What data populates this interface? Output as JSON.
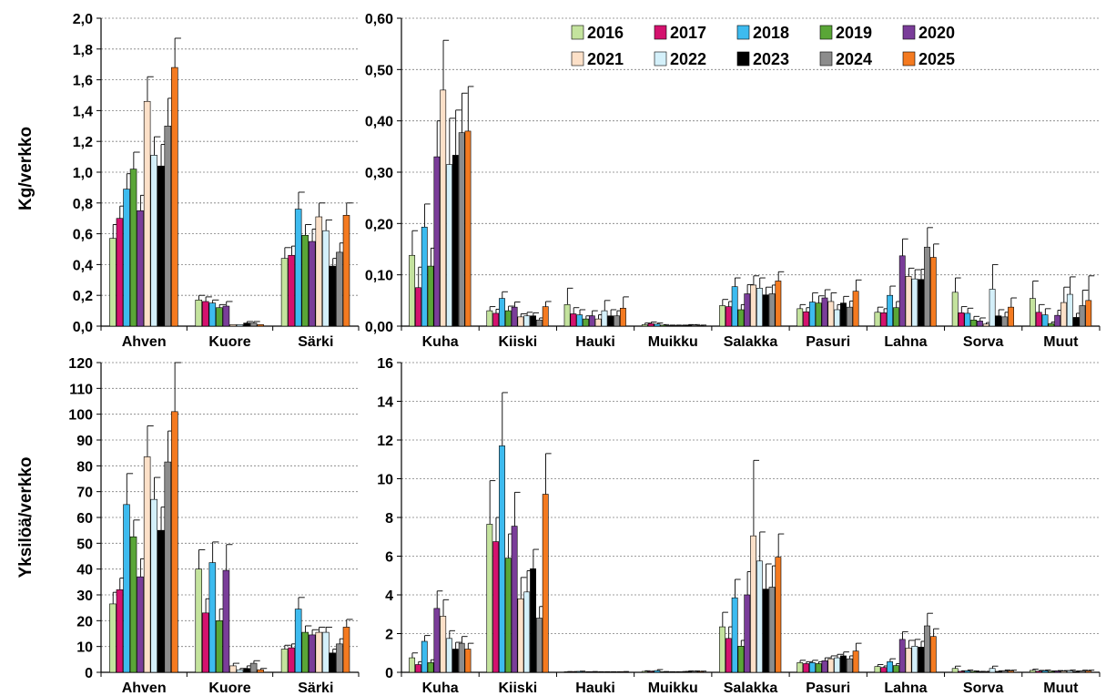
{
  "years": [
    "2016",
    "2017",
    "2018",
    "2019",
    "2020",
    "2021",
    "2022",
    "2023",
    "2024",
    "2025"
  ],
  "colors": [
    "#c4e39e",
    "#d4126e",
    "#3dbbef",
    "#5aa637",
    "#7a3d99",
    "#fce0c8",
    "#d4f0fa",
    "#000000",
    "#8c8c8c",
    "#f47a20"
  ],
  "chart_data": [
    {
      "id": "kg_main",
      "type": "bar",
      "ylabel": "Kg/verkko",
      "ylim": [
        0,
        2.0
      ],
      "ystep": 0.2,
      "decimals": 1,
      "categories": [
        "Ahven",
        "Kuore",
        "Särki"
      ],
      "series": [
        {
          "name": "2016",
          "values": [
            0.57,
            0.17,
            0.44
          ],
          "errors": [
            0.09,
            0.03,
            0.07
          ]
        },
        {
          "name": "2017",
          "values": [
            0.7,
            0.16,
            0.46
          ],
          "errors": [
            0.08,
            0.03,
            0.06
          ]
        },
        {
          "name": "2018",
          "values": [
            0.89,
            0.15,
            0.76
          ],
          "errors": [
            0.1,
            0.02,
            0.11
          ]
        },
        {
          "name": "2019",
          "values": [
            1.02,
            0.12,
            0.59
          ],
          "errors": [
            0.11,
            0.02,
            0.07
          ]
        },
        {
          "name": "2020",
          "values": [
            0.75,
            0.13,
            0.55
          ],
          "errors": [
            0.1,
            0.03,
            0.08
          ]
        },
        {
          "name": "2021",
          "values": [
            1.46,
            0.01,
            0.71
          ],
          "errors": [
            0.16,
            0.0,
            0.09
          ]
        },
        {
          "name": "2022",
          "values": [
            1.11,
            0.01,
            0.62
          ],
          "errors": [
            0.12,
            0.0,
            0.07
          ]
        },
        {
          "name": "2023",
          "values": [
            1.04,
            0.02,
            0.39
          ],
          "errors": [
            0.14,
            0.01,
            0.05
          ]
        },
        {
          "name": "2024",
          "values": [
            1.3,
            0.02,
            0.48
          ],
          "errors": [
            0.18,
            0.01,
            0.06
          ]
        },
        {
          "name": "2025",
          "values": [
            1.68,
            0.01,
            0.72
          ],
          "errors": [
            0.19,
            0.0,
            0.08
          ]
        }
      ]
    },
    {
      "id": "kg_other",
      "type": "bar",
      "ylim": [
        0,
        0.6
      ],
      "ystep": 0.1,
      "decimals": 2,
      "categories": [
        "Kuha",
        "Kiiski",
        "Hauki",
        "Muikku",
        "Salakka",
        "Pasuri",
        "Lahna",
        "Sorva",
        "Muut"
      ],
      "series": [
        {
          "name": "2016",
          "values": [
            0.138,
            0.03,
            0.042,
            0.003,
            0.04,
            0.034,
            0.027,
            0.066,
            0.054
          ],
          "errors": [
            0.048,
            0.008,
            0.032,
            0.003,
            0.012,
            0.008,
            0.01,
            0.028,
            0.034
          ]
        },
        {
          "name": "2017",
          "values": [
            0.075,
            0.025,
            0.024,
            0.005,
            0.038,
            0.028,
            0.026,
            0.026,
            0.027
          ],
          "errors": [
            0.04,
            0.008,
            0.012,
            0.003,
            0.01,
            0.008,
            0.008,
            0.012,
            0.015
          ]
        },
        {
          "name": "2018",
          "values": [
            0.193,
            0.054,
            0.022,
            0.004,
            0.077,
            0.047,
            0.06,
            0.025,
            0.022
          ],
          "errors": [
            0.045,
            0.013,
            0.01,
            0.002,
            0.017,
            0.018,
            0.018,
            0.01,
            0.012
          ]
        },
        {
          "name": "2019",
          "values": [
            0.117,
            0.03,
            0.014,
            0.002,
            0.032,
            0.045,
            0.036,
            0.012,
            0.005
          ],
          "errors": [
            0.035,
            0.009,
            0.006,
            0.001,
            0.01,
            0.014,
            0.012,
            0.007,
            0.003
          ]
        },
        {
          "name": "2020",
          "values": [
            0.33,
            0.037,
            0.02,
            0.001,
            0.063,
            0.055,
            0.137,
            0.01,
            0.021
          ],
          "errors": [
            0.07,
            0.01,
            0.01,
            0.001,
            0.018,
            0.016,
            0.033,
            0.006,
            0.01
          ]
        },
        {
          "name": "2021",
          "values": [
            0.46,
            0.018,
            0.014,
            0.001,
            0.08,
            0.048,
            0.097,
            0.004,
            0.046
          ],
          "errors": [
            0.097,
            0.006,
            0.008,
            0.001,
            0.018,
            0.017,
            0.016,
            0.003,
            0.03
          ]
        },
        {
          "name": "2022",
          "values": [
            0.315,
            0.02,
            0.03,
            0.001,
            0.074,
            0.032,
            0.092,
            0.072,
            0.062
          ],
          "errors": [
            0.09,
            0.007,
            0.02,
            0.001,
            0.02,
            0.01,
            0.018,
            0.048,
            0.034
          ]
        },
        {
          "name": "2023",
          "values": [
            0.333,
            0.02,
            0.02,
            0.002,
            0.061,
            0.045,
            0.091,
            0.02,
            0.017
          ],
          "errors": [
            0.088,
            0.006,
            0.012,
            0.001,
            0.015,
            0.013,
            0.02,
            0.012,
            0.008
          ]
        },
        {
          "name": "2024",
          "values": [
            0.377,
            0.012,
            0.02,
            0.002,
            0.063,
            0.037,
            0.154,
            0.018,
            0.04
          ],
          "errors": [
            0.077,
            0.004,
            0.01,
            0.001,
            0.017,
            0.012,
            0.038,
            0.009,
            0.03
          ]
        },
        {
          "name": "2025",
          "values": [
            0.38,
            0.038,
            0.035,
            0.001,
            0.088,
            0.068,
            0.134,
            0.037,
            0.05
          ],
          "errors": [
            0.087,
            0.01,
            0.022,
            0.001,
            0.018,
            0.022,
            0.026,
            0.018,
            0.048
          ]
        }
      ],
      "legend_position": "top-right"
    },
    {
      "id": "n_main",
      "type": "bar",
      "ylabel": "Yksilöä/verkko",
      "ylim": [
        0,
        120
      ],
      "ystep": 10,
      "decimals": 0,
      "categories": [
        "Ahven",
        "Kuore",
        "Särki"
      ],
      "series": [
        {
          "name": "2016",
          "values": [
            26.5,
            40.0,
            9.0
          ],
          "errors": [
            4.5,
            7.5,
            1.5
          ]
        },
        {
          "name": "2017",
          "values": [
            32.0,
            23.0,
            9.5
          ],
          "errors": [
            4.5,
            5.5,
            1.5
          ]
        },
        {
          "name": "2018",
          "values": [
            65.0,
            42.5,
            24.5
          ],
          "errors": [
            12.0,
            8.0,
            4.5
          ]
        },
        {
          "name": "2019",
          "values": [
            52.5,
            20.0,
            15.5
          ],
          "errors": [
            6.5,
            4.5,
            2.5
          ]
        },
        {
          "name": "2020",
          "values": [
            37.0,
            39.5,
            14.5
          ],
          "errors": [
            7.0,
            10.0,
            2.0
          ]
        },
        {
          "name": "2021",
          "values": [
            83.5,
            2.5,
            15.5
          ],
          "errors": [
            12.0,
            1.0,
            2.0
          ]
        },
        {
          "name": "2022",
          "values": [
            67.0,
            1.0,
            15.5
          ],
          "errors": [
            8.5,
            0.5,
            2.0
          ]
        },
        {
          "name": "2023",
          "values": [
            55.0,
            1.5,
            7.5
          ],
          "errors": [
            9.0,
            1.0,
            1.5
          ]
        },
        {
          "name": "2024",
          "values": [
            81.5,
            3.5,
            11.0
          ],
          "errors": [
            12.0,
            1.0,
            2.0
          ]
        },
        {
          "name": "2025",
          "values": [
            101.0,
            1.0,
            17.5
          ],
          "errors": [
            19.0,
            0.5,
            3.0
          ]
        }
      ]
    },
    {
      "id": "n_other",
      "type": "bar",
      "ylim": [
        0,
        16
      ],
      "ystep": 2,
      "decimals": 0,
      "categories": [
        "Kuha",
        "Kiiski",
        "Hauki",
        "Muikku",
        "Salakka",
        "Pasuri",
        "Lahna",
        "Sorva",
        "Muut"
      ],
      "series": [
        {
          "name": "2016",
          "values": [
            0.75,
            7.65,
            0.03,
            0.05,
            2.35,
            0.5,
            0.3,
            0.2,
            0.1
          ],
          "errors": [
            0.25,
            2.25,
            0.01,
            0.03,
            0.75,
            0.12,
            0.1,
            0.12,
            0.06
          ]
        },
        {
          "name": "2017",
          "values": [
            0.4,
            6.75,
            0.03,
            0.04,
            1.75,
            0.45,
            0.25,
            0.05,
            0.06
          ],
          "errors": [
            0.15,
            1.25,
            0.01,
            0.02,
            0.6,
            0.1,
            0.08,
            0.03,
            0.04
          ]
        },
        {
          "name": "2018",
          "values": [
            1.6,
            11.7,
            0.04,
            0.09,
            3.85,
            0.5,
            0.55,
            0.08,
            0.08
          ],
          "errors": [
            0.3,
            2.75,
            0.02,
            0.05,
            0.95,
            0.12,
            0.15,
            0.04,
            0.04
          ]
        },
        {
          "name": "2019",
          "values": [
            0.5,
            5.9,
            0.02,
            0.03,
            1.35,
            0.45,
            0.35,
            0.05,
            0.05
          ],
          "errors": [
            0.15,
            1.25,
            0.01,
            0.01,
            0.3,
            0.1,
            0.1,
            0.02,
            0.02
          ]
        },
        {
          "name": "2020",
          "values": [
            3.3,
            7.55,
            0.03,
            0.02,
            4.0,
            0.6,
            1.7,
            0.03,
            0.06
          ],
          "errors": [
            0.9,
            1.75,
            0.01,
            0.01,
            1.2,
            0.15,
            0.4,
            0.02,
            0.03
          ]
        },
        {
          "name": "2021",
          "values": [
            2.9,
            3.8,
            0.02,
            0.02,
            7.05,
            0.7,
            1.25,
            0.03,
            0.06
          ],
          "errors": [
            0.85,
            1.1,
            0.01,
            0.01,
            3.9,
            0.15,
            0.4,
            0.02,
            0.03
          ]
        },
        {
          "name": "2022",
          "values": [
            1.75,
            4.15,
            0.02,
            0.03,
            5.75,
            0.75,
            1.35,
            0.2,
            0.08
          ],
          "errors": [
            0.4,
            1.1,
            0.01,
            0.01,
            1.5,
            0.18,
            0.35,
            0.12,
            0.04
          ]
        },
        {
          "name": "2023",
          "values": [
            1.2,
            5.35,
            0.02,
            0.05,
            4.3,
            0.85,
            1.3,
            0.05,
            0.05
          ],
          "errors": [
            0.35,
            1.0,
            0.01,
            0.02,
            1.3,
            0.2,
            0.3,
            0.03,
            0.02
          ]
        },
        {
          "name": "2024",
          "values": [
            1.5,
            2.8,
            0.02,
            0.05,
            4.4,
            0.7,
            2.4,
            0.08,
            0.07
          ],
          "errors": [
            0.35,
            0.6,
            0.01,
            0.02,
            1.1,
            0.15,
            0.65,
            0.04,
            0.04
          ]
        },
        {
          "name": "2025",
          "values": [
            1.2,
            9.2,
            0.03,
            0.04,
            5.95,
            1.1,
            1.85,
            0.07,
            0.07
          ],
          "errors": [
            0.3,
            2.1,
            0.01,
            0.02,
            1.2,
            0.4,
            0.4,
            0.04,
            0.04
          ]
        }
      ]
    }
  ]
}
